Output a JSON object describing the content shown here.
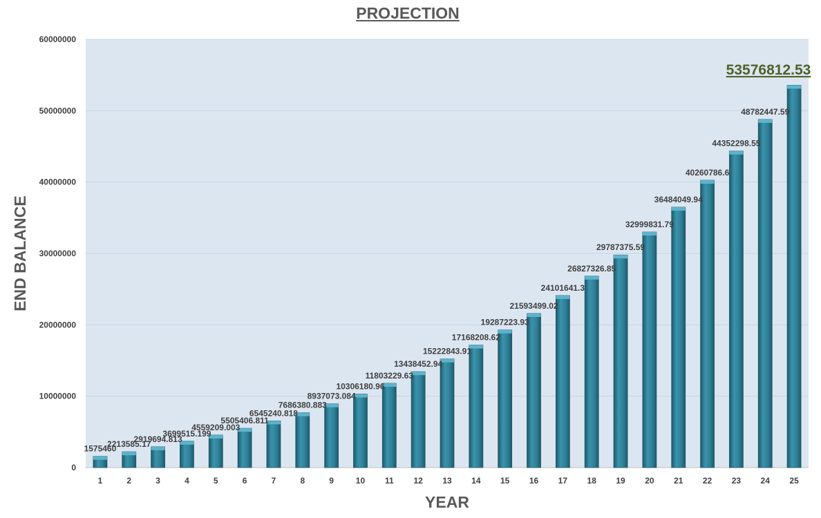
{
  "chart_data": {
    "type": "bar",
    "title": "PROJECTION",
    "xlabel": "YEAR",
    "ylabel": "END BALANCE",
    "categories": [
      "1",
      "2",
      "3",
      "4",
      "5",
      "6",
      "7",
      "8",
      "9",
      "10",
      "11",
      "12",
      "13",
      "14",
      "15",
      "16",
      "17",
      "18",
      "19",
      "20",
      "21",
      "22",
      "23",
      "24",
      "25"
    ],
    "values": [
      1575460,
      2213585.17,
      2919694.813,
      3699515.199,
      4559209.003,
      5505406.811,
      6545240.818,
      7686380.883,
      8937073.084,
      10306180.96,
      11803229.63,
      13438452.94,
      15222843.91,
      17168208.62,
      19287223.93,
      21593499.02,
      24101641.3,
      26827326.85,
      29787375.59,
      32999831.79,
      36484049.94,
      40260786.6,
      44352298.55,
      48782447.59,
      53576812.53
    ],
    "data_labels": [
      "1575460",
      "2213585.17",
      "2919694.813",
      "3699515.199",
      "4559209.003",
      "5505406.811",
      "6545240.818",
      "7686380.883",
      "8937073.084",
      "10306180.96",
      "11803229.63",
      "13438452.94",
      "15222843.91",
      "17168208.62",
      "19287223.93",
      "21593499.02",
      "24101641.3",
      "26827326.85",
      "29787375.59",
      "32999831.79",
      "36484049.94",
      "40260786.6",
      "44352298.55",
      "48782447.59",
      ""
    ],
    "highlight_label": "53576812.53",
    "yticks": [
      "0",
      "10000000",
      "20000000",
      "30000000",
      "40000000",
      "50000000",
      "60000000"
    ],
    "ylim": [
      0,
      60000000
    ],
    "grid": true,
    "legend": "none",
    "colors": {
      "bar": "#31849b",
      "bar_light": "#5fb3cc",
      "bar_dark": "#1d5a6a",
      "plot_bg": "#dce6f1",
      "gridline": "#c8d4e3",
      "highlight": "#4f6228"
    }
  }
}
